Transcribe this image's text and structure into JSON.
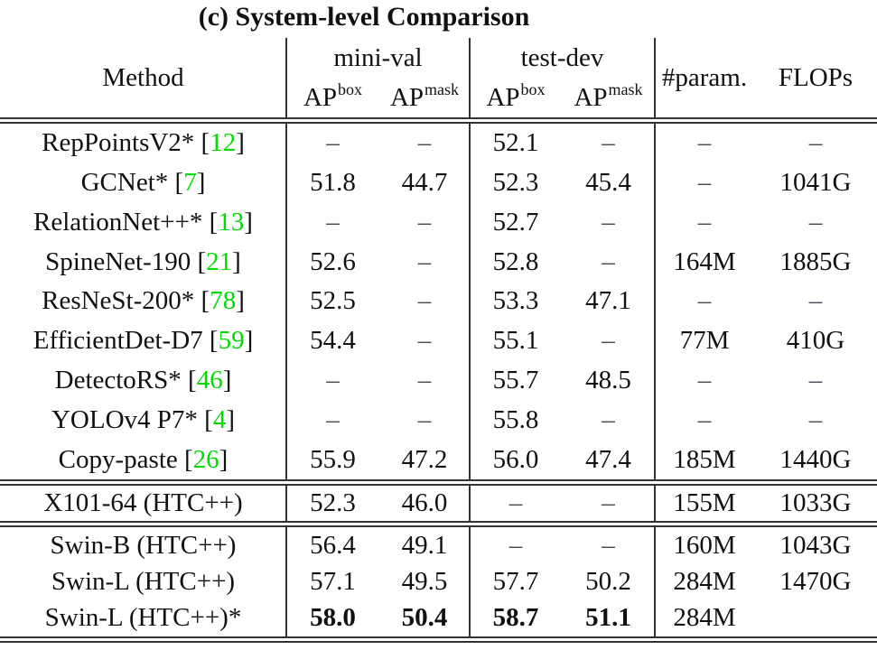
{
  "title": "(c) System-level Comparison",
  "colors": {
    "text": "#111111",
    "cite": "#00dd00",
    "dash": "#4a4a55",
    "rule": "#333333",
    "bg": "#ffffff"
  },
  "table": {
    "headers": {
      "method": "Method",
      "mini_val": "mini-val",
      "test_dev": "test-dev",
      "ap": "AP",
      "sup_box": "box",
      "sup_mask": "mask",
      "param": "#param.",
      "flops": "FLOPs"
    },
    "column_keys": [
      "minival_ap_box",
      "minival_ap_mask",
      "testdev_ap_box",
      "testdev_ap_mask",
      "params",
      "flops"
    ],
    "groups": [
      {
        "name": "prior-systems",
        "rows": [
          {
            "method": "RepPointsV2*",
            "cite": "12",
            "values": [
              "–",
              "–",
              "52.1",
              "–",
              "–",
              "–"
            ]
          },
          {
            "method": "GCNet*",
            "cite": "7",
            "values": [
              "51.8",
              "44.7",
              "52.3",
              "45.4",
              "–",
              "1041G"
            ]
          },
          {
            "method": "RelationNet++*",
            "cite": "13",
            "values": [
              "–",
              "–",
              "52.7",
              "–",
              "–",
              "–"
            ]
          },
          {
            "method": "SpineNet-190",
            "cite": "21",
            "values": [
              "52.6",
              "–",
              "52.8",
              "–",
              "164M",
              "1885G"
            ]
          },
          {
            "method": "ResNeSt-200*",
            "cite": "78",
            "values": [
              "52.5",
              "–",
              "53.3",
              "47.1",
              "–",
              "–"
            ]
          },
          {
            "method": "EfficientDet-D7",
            "cite": "59",
            "values": [
              "54.4",
              "–",
              "55.1",
              "–",
              "77M",
              "410G"
            ]
          },
          {
            "method": "DetectoRS*",
            "cite": "46",
            "values": [
              "–",
              "–",
              "55.7",
              "48.5",
              "–",
              "–"
            ]
          },
          {
            "method": "YOLOv4 P7*",
            "cite": "4",
            "values": [
              "–",
              "–",
              "55.8",
              "–",
              "–",
              "–"
            ]
          },
          {
            "method": "Copy-paste",
            "cite": "26",
            "values": [
              "55.9",
              "47.2",
              "56.0",
              "47.4",
              "185M",
              "1440G"
            ]
          }
        ]
      },
      {
        "name": "x101-baseline",
        "rows": [
          {
            "method": "X101-64 (HTC++)",
            "cite": null,
            "values": [
              "52.3",
              "46.0",
              "–",
              "–",
              "155M",
              "1033G"
            ]
          }
        ]
      },
      {
        "name": "swin-results",
        "rows": [
          {
            "method": "Swin-B (HTC++)",
            "cite": null,
            "values": [
              "56.4",
              "49.1",
              "–",
              "–",
              "160M",
              "1043G"
            ]
          },
          {
            "method": "Swin-L (HTC++)",
            "cite": null,
            "values": [
              "57.1",
              "49.5",
              "57.7",
              "50.2",
              "284M",
              "1470G"
            ]
          },
          {
            "method": "Swin-L (HTC++)*",
            "cite": null,
            "values": [
              "58.0",
              "50.4",
              "58.7",
              "51.1",
              "284M",
              ""
            ],
            "bold": [
              true,
              true,
              true,
              true,
              false,
              false
            ]
          }
        ]
      }
    ]
  }
}
